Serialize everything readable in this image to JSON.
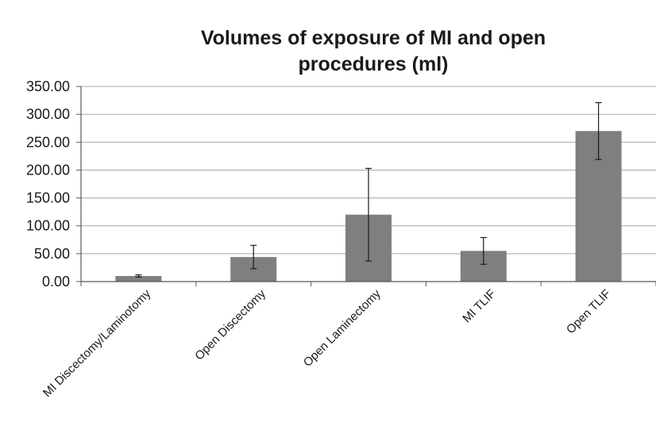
{
  "chart_data": {
    "type": "bar",
    "title": "Volumes of exposure of  MI and open\nprocedures (ml)",
    "xlabel": "",
    "ylabel": "",
    "categories": [
      "MI Discectomy/Laminotomy",
      "Open Discectomy",
      "Open Laminectomy",
      "MI TLIF",
      "Open TLIF"
    ],
    "values": [
      10,
      44,
      120,
      55,
      270
    ],
    "error": [
      2,
      21,
      83,
      24,
      51
    ],
    "ylim": [
      0,
      350
    ],
    "yticks": [
      0,
      50,
      100,
      150,
      200,
      250,
      300,
      350
    ],
    "ytick_labels": [
      "0.00",
      "50.00",
      "100.00",
      "150.00",
      "200.00",
      "250.00",
      "300.00",
      "350.00"
    ],
    "grid": true,
    "legend": "none",
    "bar_color": "#7f7f7f",
    "grid_color": "#a6a6a6",
    "axis_color": "#595959",
    "error_color": "#1a1a1a"
  }
}
